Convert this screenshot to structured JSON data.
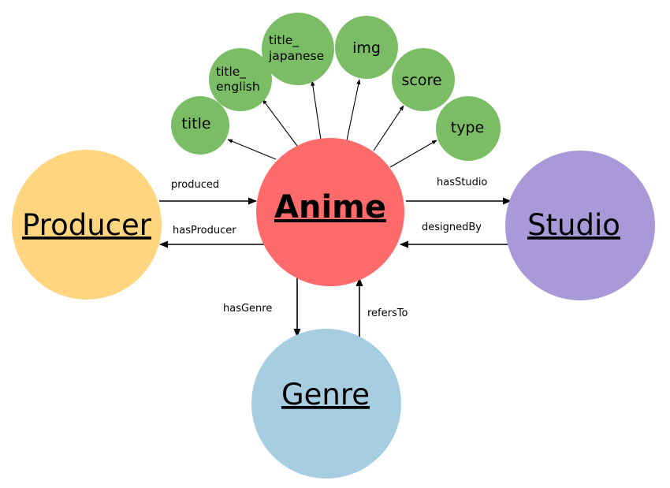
{
  "nodes": {
    "anime": {
      "label": "Anime",
      "color": "#ff6b6b"
    },
    "producer": {
      "label": "Producer",
      "color": "#ffd580"
    },
    "studio": {
      "label": "Studio",
      "color": "#a89ad9"
    },
    "genre": {
      "label": "Genre",
      "color": "#a6cde0"
    }
  },
  "attributes": {
    "color": "#7bbd64",
    "title": "title",
    "title_english": [
      "title_",
      "english"
    ],
    "title_japanese": [
      "title_",
      "japanese"
    ],
    "img": "img",
    "score": "score",
    "type": "type"
  },
  "edges": {
    "produced": "produced",
    "hasProducer": "hasProducer",
    "hasStudio": "hasStudio",
    "designedBy": "designedBy",
    "hasGenre": "hasGenre",
    "refersTo": "refersTo"
  }
}
